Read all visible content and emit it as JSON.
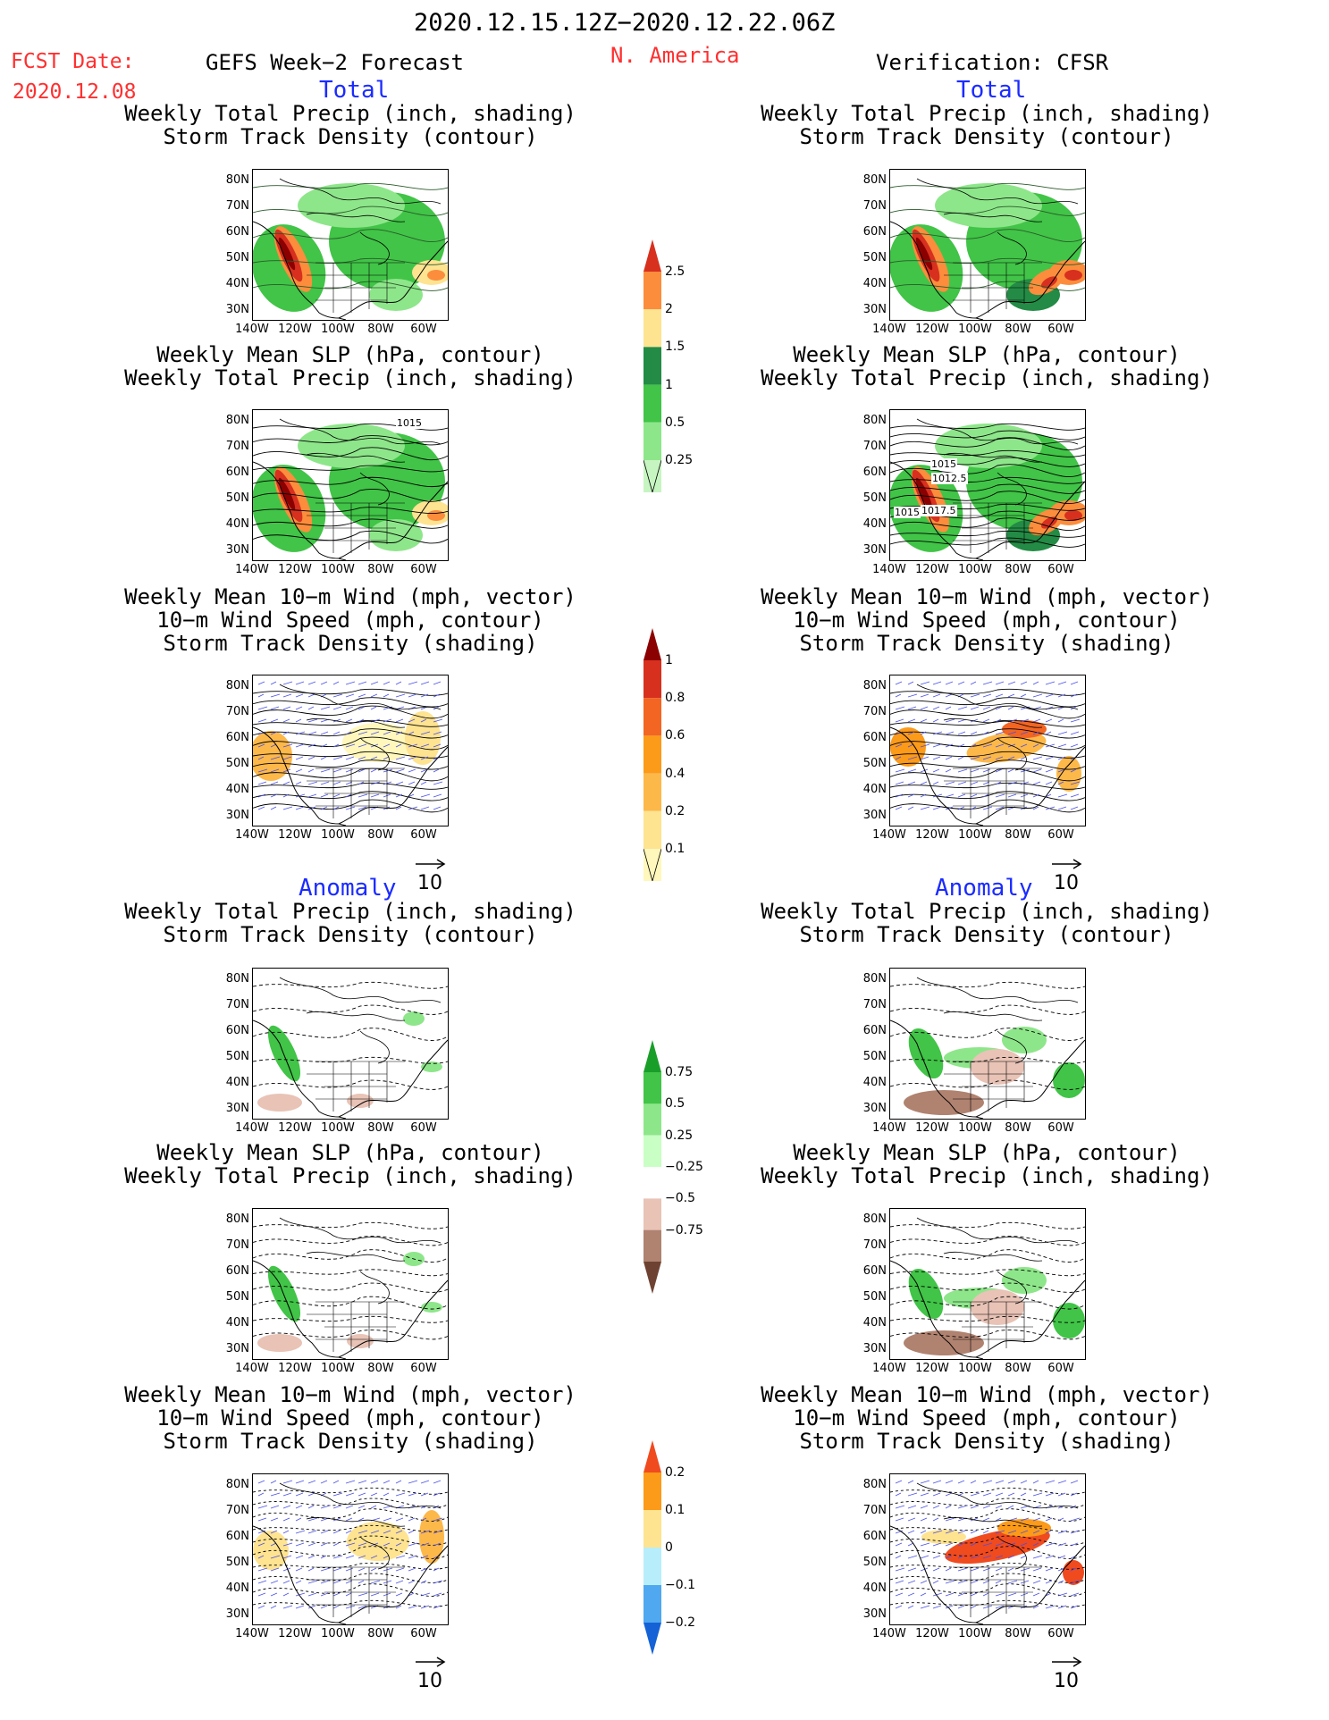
{
  "header": {
    "date_range": "2020.12.15.12Z−2020.12.22.06Z",
    "fcst_label": "FCST Date:",
    "fcst_date": "2020.12.08",
    "forecast_title": "GEFS Week−2 Forecast",
    "region": "N. America",
    "verification": "Verification: CFSR"
  },
  "sections": {
    "total": "Total",
    "anomaly": "Anomaly"
  },
  "panel_titles": {
    "precip_storm": [
      "Weekly Total Precip (inch, shading)",
      "Storm Track Density (contour)"
    ],
    "slp_precip": [
      "Weekly Mean SLP (hPa, contour)",
      "Weekly Total Precip (inch, shading)"
    ],
    "wind_storm": [
      "Weekly Mean 10−m Wind (mph, vector)",
      "10−m Wind Speed (mph, contour)",
      "Storm Track Density (shading)"
    ]
  },
  "axes": {
    "lat_labels": [
      "80N",
      "70N",
      "60N",
      "50N",
      "40N",
      "30N"
    ],
    "lon_labels": [
      "140W",
      "120W",
      "100W",
      "80W",
      "60W"
    ]
  },
  "vector_ref": "10",
  "contour_labels": {
    "slp_forecast": [
      "1015"
    ],
    "slp_verification": [
      "1015",
      "1012.5",
      "1015",
      "1017.5"
    ]
  },
  "colorbars": [
    {
      "id": "precip_total",
      "labels": [
        "2.5",
        "2",
        "1.5",
        "1",
        "0.5",
        "0.25"
      ],
      "colors": [
        "#d7301f",
        "#fc8d3c",
        "#fee391",
        "#238b45",
        "#41c447",
        "#8ee68a",
        "#c7f5c2"
      ]
    },
    {
      "id": "storm_total",
      "labels": [
        "1",
        "0.8",
        "0.6",
        "0.4",
        "0.2",
        "0.1"
      ],
      "colors": [
        "#8b0000",
        "#d7301f",
        "#f26522",
        "#fc9a1a",
        "#fdb84a",
        "#fee391",
        "#fff7bc"
      ]
    },
    {
      "id": "precip_anom",
      "labels": [
        "0.75",
        "0.5",
        "0.25",
        "−0.25",
        "−0.5",
        "−0.75"
      ],
      "colors": [
        "#1a9e2a",
        "#41c447",
        "#8ee68a",
        "#c9ffc4",
        "#ffffff",
        "#e8c3b6",
        "#b08270",
        "#6e4232"
      ]
    },
    {
      "id": "storm_anom",
      "labels": [
        "0.2",
        "0.1",
        "0",
        "−0.1",
        "−0.2"
      ],
      "colors": [
        "#f04a1f",
        "#fc9a1a",
        "#fee391",
        "#b8eefc",
        "#4fa8f0",
        "#1462d6"
      ]
    }
  ]
}
